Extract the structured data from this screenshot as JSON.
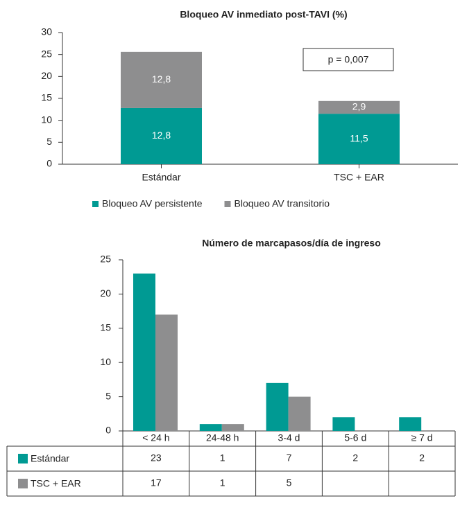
{
  "chart_data": [
    {
      "type": "bar",
      "stacked": true,
      "title": "Bloqueo AV inmediato post-TAVI (%)",
      "categories": [
        "Estándar",
        "TSC + EAR"
      ],
      "series": [
        {
          "name": "Bloqueo AV persistente",
          "color": "#009a93",
          "values": [
            12.8,
            11.5
          ],
          "value_labels": [
            "12,8",
            "11,5"
          ]
        },
        {
          "name": "Bloqueo AV transitorio",
          "color": "#8e8e8f",
          "values": [
            12.8,
            2.9
          ],
          "value_labels": [
            "12,8",
            "2,9"
          ]
        }
      ],
      "ylim": [
        0,
        30
      ],
      "yticks": [
        0,
        5,
        10,
        15,
        20,
        25,
        30
      ],
      "annotations": [
        "p = 0,007"
      ],
      "legend": "bottom"
    },
    {
      "type": "bar",
      "stacked": false,
      "title": "Número de marcapasos/día de ingreso",
      "categories": [
        "< 24 h",
        "24-48 h",
        "3-4 d",
        "5-6 d",
        "≥ 7 d"
      ],
      "series": [
        {
          "name": "Estándar",
          "color": "#009a93",
          "values": [
            23,
            1,
            7,
            2,
            2
          ]
        },
        {
          "name": "TSC + EAR",
          "color": "#8e8e8f",
          "values": [
            17,
            1,
            5,
            null,
            null
          ]
        }
      ],
      "ylim": [
        0,
        25
      ],
      "yticks": [
        0,
        5,
        10,
        15,
        20,
        25
      ],
      "data_table": true
    }
  ]
}
